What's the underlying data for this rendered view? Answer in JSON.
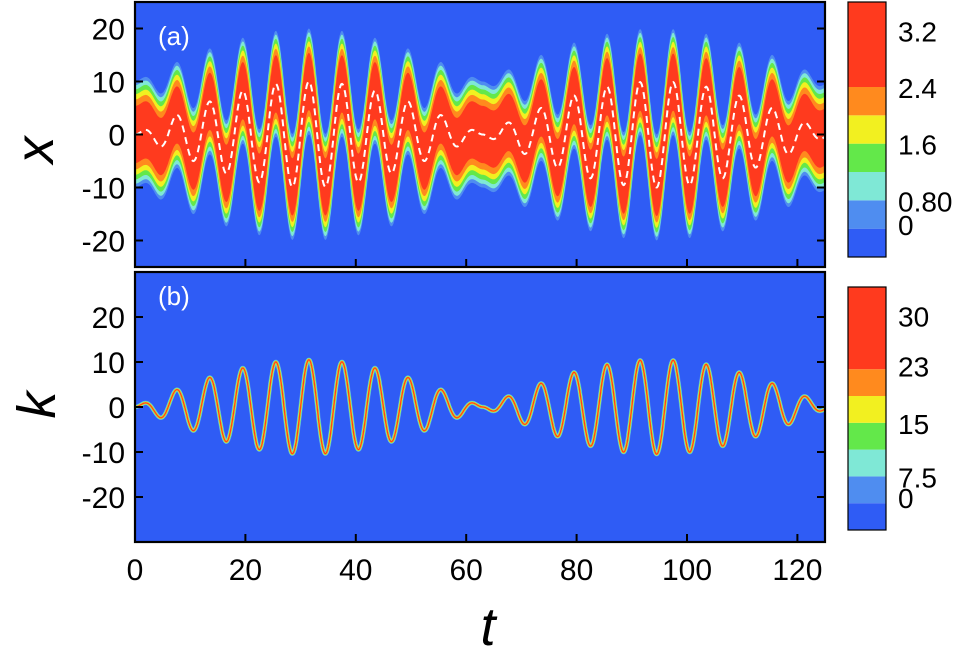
{
  "colors": {
    "background": "#2f5cf5",
    "levels": [
      "#2f5cf5",
      "#4f8df0",
      "#7fe8d6",
      "#63e84a",
      "#f2f020",
      "#ff8a1e",
      "#ff3a1e"
    ],
    "dashed_line": "#ffffff",
    "frame": "#000000"
  },
  "chart_data": [
    {
      "panel_label": "(a)",
      "type": "heatmap",
      "ylabel": "x",
      "xlabel": "",
      "xlim": [
        0,
        125
      ],
      "ylim": [
        -25,
        25
      ],
      "x_ticks": [
        "0",
        "20",
        "40",
        "60",
        "80",
        "100",
        "120"
      ],
      "y_ticks": [
        "20",
        "10",
        "0",
        "-10",
        "-20"
      ],
      "y_tick_values": [
        20,
        10,
        0,
        -10,
        -20
      ],
      "colorbar_ticks": [
        "3.2",
        "2.4",
        "1.6",
        "0.80",
        "0"
      ],
      "colorbar_tick_values": [
        3.2,
        2.4,
        1.6,
        0.8,
        0
      ],
      "colorbar_range": [
        0,
        3.6
      ],
      "oscillation_period": 6.0,
      "beat_period": 63,
      "center_amplitude_max": 10,
      "band_half_width_at_zero": 10,
      "outer_envelope_max": 19,
      "dashed_line": "mean trajectory"
    },
    {
      "panel_label": "(b)",
      "type": "heatmap",
      "ylabel": "k",
      "xlabel": "t",
      "xlim": [
        0,
        125
      ],
      "ylim": [
        -30,
        30
      ],
      "x_ticks": [
        "0",
        "20",
        "40",
        "60",
        "80",
        "100",
        "120"
      ],
      "x_tick_values": [
        0,
        20,
        40,
        60,
        80,
        100,
        120
      ],
      "y_ticks": [
        "20",
        "10",
        "0",
        "-10",
        "-20"
      ],
      "y_tick_values": [
        20,
        10,
        0,
        -10,
        -20
      ],
      "colorbar_ticks": [
        "30",
        "23",
        "15",
        "7.5",
        "0"
      ],
      "colorbar_tick_values": [
        30,
        23,
        15,
        7.5,
        0
      ],
      "colorbar_range": [
        0,
        34
      ],
      "oscillation_period": 6.0,
      "beat_period": 63,
      "center_amplitude_max": 10.5,
      "band_half_width": 0.6
    }
  ]
}
